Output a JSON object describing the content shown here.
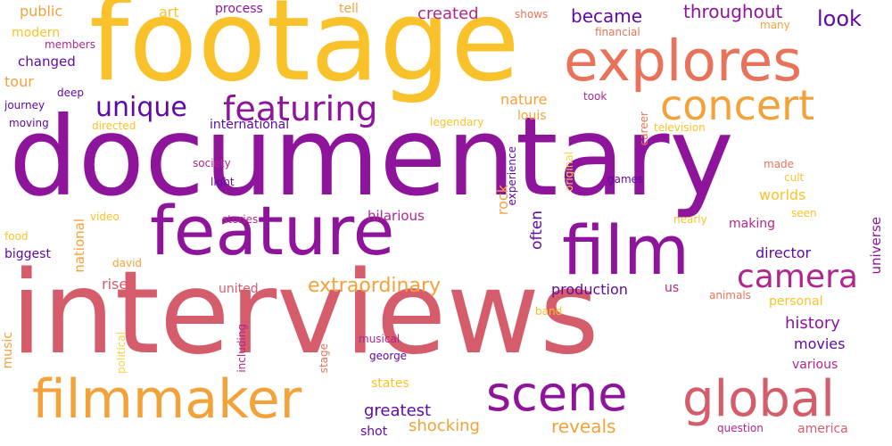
{
  "palette": {
    "violet": "#5e0aa3",
    "purple": "#8e159b",
    "magenta": "#b0268c",
    "rose": "#d55c6b",
    "coral": "#e8735a",
    "orange": "#f3a23a",
    "gold": "#f9c22a",
    "yellow": "#f5d34a"
  },
  "words": [
    {
      "text": "documentary",
      "color": "purple"
    },
    {
      "text": "interviews",
      "color": "rose"
    },
    {
      "text": "footage",
      "color": "gold"
    },
    {
      "text": "explores",
      "color": "coral"
    },
    {
      "text": "feature",
      "color": "purple"
    },
    {
      "text": "film",
      "color": "purple"
    },
    {
      "text": "filmmaker",
      "color": "orange"
    },
    {
      "text": "scene",
      "color": "purple"
    },
    {
      "text": "global",
      "color": "rose"
    },
    {
      "text": "concert",
      "color": "orange"
    },
    {
      "text": "featuring",
      "color": "purple"
    },
    {
      "text": "unique",
      "color": "violet"
    },
    {
      "text": "camera",
      "color": "magenta"
    },
    {
      "text": "extraordinary",
      "color": "orange"
    },
    {
      "text": "history",
      "color": "purple"
    },
    {
      "text": "look",
      "color": "violet"
    },
    {
      "text": "became",
      "color": "violet"
    },
    {
      "text": "throughout",
      "color": "purple"
    },
    {
      "text": "created",
      "color": "magenta"
    },
    {
      "text": "public",
      "color": "orange"
    },
    {
      "text": "art",
      "color": "gold"
    },
    {
      "text": "process",
      "color": "purple"
    },
    {
      "text": "tell",
      "color": "orange"
    },
    {
      "text": "shows",
      "color": "coral"
    },
    {
      "text": "modern",
      "color": "gold"
    },
    {
      "text": "members",
      "color": "magenta"
    },
    {
      "text": "changed",
      "color": "violet"
    },
    {
      "text": "tour",
      "color": "orange"
    },
    {
      "text": "deep",
      "color": "violet"
    },
    {
      "text": "journey",
      "color": "violet"
    },
    {
      "text": "moving",
      "color": "violet"
    },
    {
      "text": "directed",
      "color": "gold"
    },
    {
      "text": "international",
      "color": "violet"
    },
    {
      "text": "legendary",
      "color": "gold"
    },
    {
      "text": "nature",
      "color": "orange"
    },
    {
      "text": "louis",
      "color": "orange"
    },
    {
      "text": "took",
      "color": "magenta"
    },
    {
      "text": "financial",
      "color": "coral"
    },
    {
      "text": "many",
      "color": "orange"
    },
    {
      "text": "television",
      "color": "gold"
    },
    {
      "text": "made",
      "color": "coral"
    },
    {
      "text": "cult",
      "color": "gold"
    },
    {
      "text": "society",
      "color": "magenta"
    },
    {
      "text": "light",
      "color": "violet"
    },
    {
      "text": "games",
      "color": "violet"
    },
    {
      "text": "worlds",
      "color": "gold"
    },
    {
      "text": "seen",
      "color": "gold"
    },
    {
      "text": "making",
      "color": "magenta"
    },
    {
      "text": "nearly",
      "color": "gold"
    },
    {
      "text": "stories",
      "color": "magenta"
    },
    {
      "text": "hilarious",
      "color": "magenta"
    },
    {
      "text": "video",
      "color": "gold"
    },
    {
      "text": "food",
      "color": "gold"
    },
    {
      "text": "biggest",
      "color": "violet"
    },
    {
      "text": "david",
      "color": "orange"
    },
    {
      "text": "rise",
      "color": "rose"
    },
    {
      "text": "director",
      "color": "violet"
    },
    {
      "text": "united",
      "color": "rose"
    },
    {
      "text": "production",
      "color": "violet"
    },
    {
      "text": "us",
      "color": "magenta"
    },
    {
      "text": "animals",
      "color": "coral"
    },
    {
      "text": "personal",
      "color": "gold"
    },
    {
      "text": "band",
      "color": "gold"
    },
    {
      "text": "movies",
      "color": "violet"
    },
    {
      "text": "musical",
      "color": "magenta"
    },
    {
      "text": "george",
      "color": "violet"
    },
    {
      "text": "various",
      "color": "magenta"
    },
    {
      "text": "states",
      "color": "gold"
    },
    {
      "text": "greatest",
      "color": "violet"
    },
    {
      "text": "shocking",
      "color": "orange"
    },
    {
      "text": "reveals",
      "color": "orange"
    },
    {
      "text": "shot",
      "color": "violet"
    },
    {
      "text": "question",
      "color": "magenta"
    },
    {
      "text": "america",
      "color": "rose"
    },
    {
      "text": "rock",
      "color": "orange"
    },
    {
      "text": "often",
      "color": "violet"
    },
    {
      "text": "experience",
      "color": "violet"
    },
    {
      "text": "original",
      "color": "yellow"
    },
    {
      "text": "career",
      "color": "coral"
    },
    {
      "text": "universe",
      "color": "purple"
    },
    {
      "text": "national",
      "color": "orange"
    },
    {
      "text": "music",
      "color": "orange"
    },
    {
      "text": "political",
      "color": "yellow"
    },
    {
      "text": "including",
      "color": "magenta"
    },
    {
      "text": "stage",
      "color": "coral"
    }
  ]
}
